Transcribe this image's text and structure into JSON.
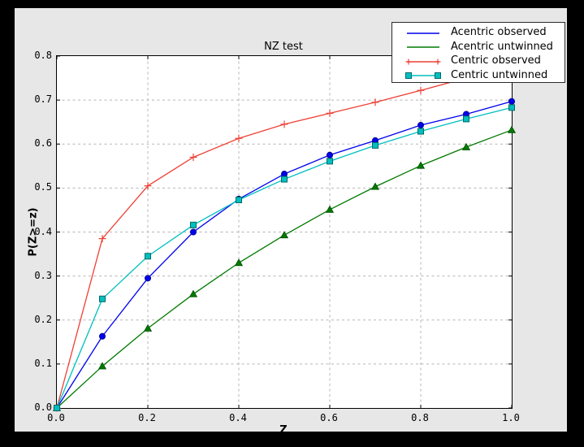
{
  "window": {
    "background": "#000000",
    "figure_background": "#e7e7e7",
    "plot_background": "#ffffff"
  },
  "chart_data": {
    "type": "line",
    "title": "NZ test",
    "xlabel": "Z",
    "ylabel": "P(Z>=z)",
    "xlim": [
      0.0,
      1.0
    ],
    "ylim": [
      0.0,
      0.8
    ],
    "grid": true,
    "gridline_color": "#b5b5b5",
    "axis_color": "#000000",
    "legend_position": "upper right",
    "xticks": [
      0.0,
      0.2,
      0.4,
      0.6,
      0.8,
      1.0
    ],
    "xtick_labels": [
      "0.0",
      "0.2",
      "0.4",
      "0.6",
      "0.8",
      "1.0"
    ],
    "yticks": [
      0.0,
      0.1,
      0.2,
      0.3,
      0.4,
      0.5,
      0.6,
      0.7,
      0.8
    ],
    "ytick_labels": [
      "0.0",
      "0.1",
      "0.2",
      "0.3",
      "0.4",
      "0.5",
      "0.6",
      "0.7",
      "0.8"
    ],
    "x": [
      0.0,
      0.1,
      0.2,
      0.3,
      0.4,
      0.5,
      0.6,
      0.7,
      0.8,
      0.9,
      1.0
    ],
    "series": [
      {
        "name": "Acentric observed",
        "color": "#0000ee",
        "marker": "circle",
        "marker_fill": "#0000ee",
        "marker_edge": "#000080",
        "legend_marker": "none",
        "values": [
          0.0,
          0.163,
          0.295,
          0.4,
          0.475,
          0.532,
          0.575,
          0.608,
          0.643,
          0.668,
          0.697
        ]
      },
      {
        "name": "Acentric untwinned",
        "color": "#007a00",
        "marker": "triangle",
        "marker_fill": "#007a00",
        "marker_edge": "#004d00",
        "legend_marker": "none",
        "values": [
          0.0,
          0.095,
          0.181,
          0.259,
          0.33,
          0.393,
          0.451,
          0.503,
          0.551,
          0.593,
          0.632
        ]
      },
      {
        "name": "Centric observed",
        "color": "#ee4035",
        "marker": "plus",
        "marker_fill": "none",
        "marker_edge": "#ee4035",
        "legend_marker": "plus",
        "values": [
          0.0,
          0.385,
          0.505,
          0.57,
          0.613,
          0.645,
          0.67,
          0.695,
          0.722,
          0.75,
          0.776
        ]
      },
      {
        "name": "Centric untwinned",
        "color": "#00bfbf",
        "marker": "square",
        "marker_fill": "#00bfbf",
        "marker_edge": "#006868",
        "legend_marker": "square",
        "values": [
          0.0,
          0.248,
          0.345,
          0.416,
          0.473,
          0.52,
          0.561,
          0.597,
          0.629,
          0.657,
          0.683
        ]
      }
    ]
  }
}
